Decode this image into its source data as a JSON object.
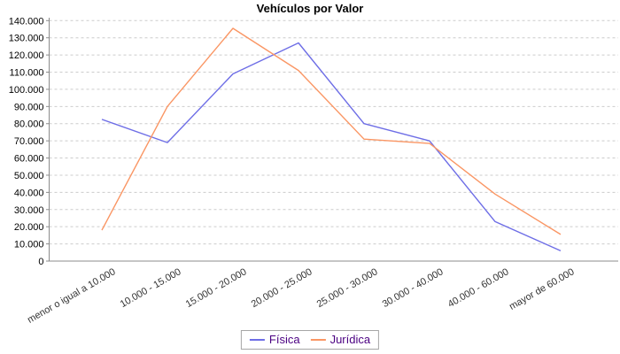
{
  "title": "Vehículos por Valor",
  "colors": {
    "fisica": "#6e6ee6",
    "juridica": "#fa9664",
    "grid": "#cccccc",
    "axis": "#8c8c8c",
    "tick_label": "#000000",
    "category_label": "#333333",
    "legend_text": "#4b0082",
    "legend_border": "#a6a6a6",
    "background": "#ffffff"
  },
  "y_axis": {
    "ticks": [
      "0",
      "10.000",
      "20.000",
      "30.000",
      "40.000",
      "50.000",
      "60.000",
      "70.000",
      "80.000",
      "90.000",
      "100.000",
      "110.000",
      "120.000",
      "130.000",
      "140.000"
    ],
    "min": 0,
    "max": 140000,
    "step": 10000
  },
  "chart_data": {
    "type": "line",
    "title": "Vehículos por Valor",
    "categories": [
      "menor o igual a 10.000",
      "10.000 - 15.000",
      "15.000 - 20.000",
      "20.000 - 25.000",
      "25.000 - 30.000",
      "30.000 - 40.000",
      "40.000 - 60.000",
      "mayor de 60.000"
    ],
    "series": [
      {
        "name": "Física",
        "color": "#6e6ee6",
        "values": [
          82500,
          69000,
          109000,
          127000,
          80000,
          70000,
          23000,
          6000
        ]
      },
      {
        "name": "Jurídica",
        "color": "#fa9664",
        "values": [
          18000,
          90000,
          135500,
          111000,
          71000,
          68500,
          39000,
          15500
        ]
      }
    ],
    "ylim": [
      0,
      140000
    ],
    "grid": "horizontal-dashed",
    "legend_position": "bottom"
  },
  "legend": {
    "items": [
      {
        "label": "Física"
      },
      {
        "label": "Jurídica"
      }
    ]
  }
}
